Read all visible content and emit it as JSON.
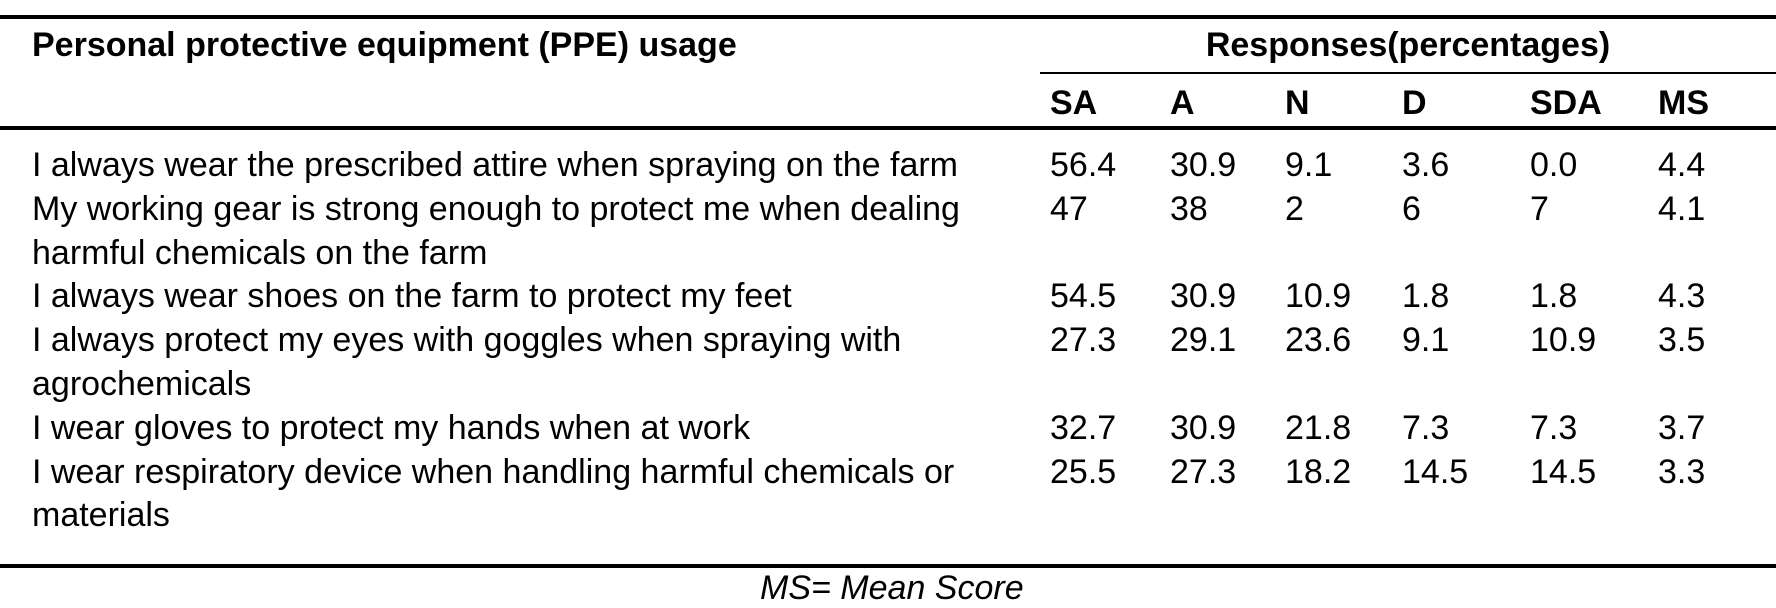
{
  "table": {
    "row_header": "Personal protective equipment (PPE) usage",
    "group_header": "Responses(percentages)",
    "columns": [
      "SA",
      "A",
      "N",
      "D",
      "SDA",
      "MS"
    ],
    "rows": [
      {
        "label": "I always wear the prescribed attire when spraying on the farm",
        "values": [
          "56.4",
          "30.9",
          "9.1",
          "3.6",
          "0.0",
          "4.4"
        ]
      },
      {
        "label": "My working gear is strong enough to protect me when dealing harmful chemicals on the farm",
        "values": [
          "47",
          "38",
          "2",
          "6",
          "7",
          "4.1"
        ]
      },
      {
        "label": "I always wear shoes on the farm to protect my feet",
        "values": [
          "54.5",
          "30.9",
          "10.9",
          "1.8",
          "1.8",
          "4.3"
        ]
      },
      {
        "label": "I always protect my eyes with goggles when spraying with agrochemicals",
        "values": [
          "27.3",
          "29.1",
          "23.6",
          "9.1",
          "10.9",
          "3.5"
        ]
      },
      {
        "label": "I wear gloves to protect my hands when at work",
        "values": [
          "32.7",
          "30.9",
          "21.8",
          "7.3",
          "7.3",
          "3.7"
        ]
      },
      {
        "label": "I wear respiratory device when handling harmful chemicals or materials",
        "values": [
          "25.5",
          "27.3",
          "18.2",
          "14.5",
          "14.5",
          "3.3"
        ]
      }
    ],
    "footnote": "MS= Mean Score"
  }
}
